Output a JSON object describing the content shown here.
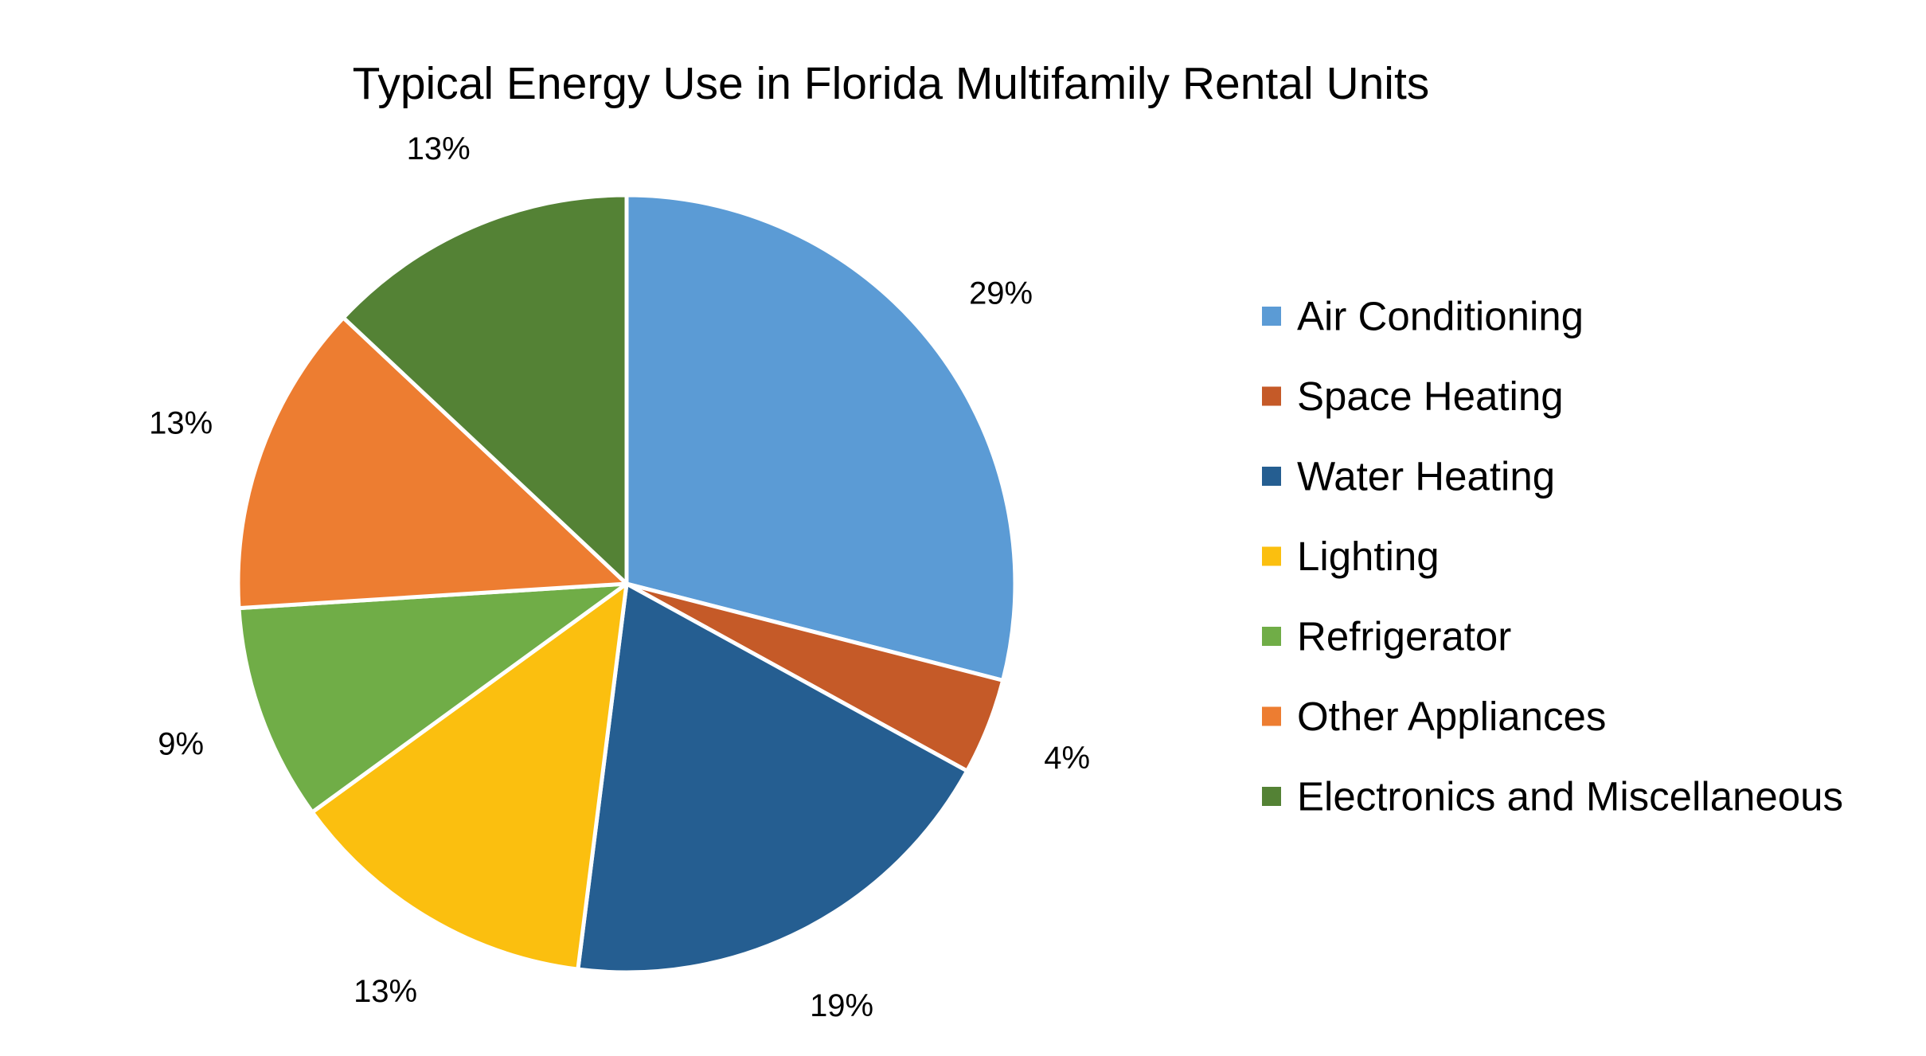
{
  "chart_data": {
    "type": "pie",
    "title": "Typical Energy Use in Florida Multifamily Rental Units",
    "categories": [
      "Air Conditioning",
      "Space Heating",
      "Water Heating",
      "Lighting",
      "Refrigerator",
      "Other Appliances",
      "Electronics and Miscellaneous"
    ],
    "values": [
      29,
      4,
      19,
      13,
      9,
      13,
      13
    ],
    "data_labels": [
      "29%",
      "4%",
      "19%",
      "13%",
      "9%",
      "13%",
      "13%"
    ],
    "colors": [
      "#5B9BD5",
      "#C55A28",
      "#255E91",
      "#FBBF0F",
      "#70AD47",
      "#ED7D31",
      "#548235"
    ],
    "value_unit": "percent",
    "start_angle": "12 o'clock, clockwise",
    "legend_position": "right",
    "slice_border_color": "#FFFFFF"
  }
}
